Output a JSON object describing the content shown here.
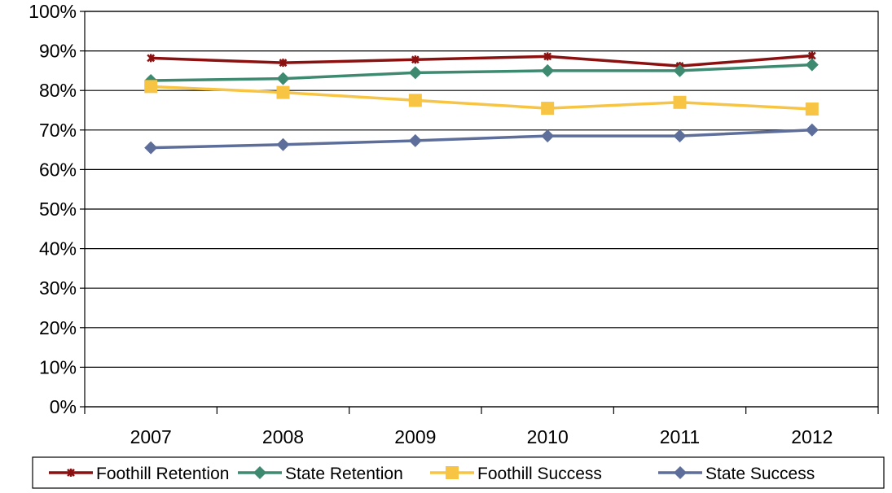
{
  "chart_data": {
    "type": "line",
    "categories": [
      "2007",
      "2008",
      "2009",
      "2010",
      "2011",
      "2012"
    ],
    "y_tick_labels": [
      "0%",
      "10%",
      "20%",
      "30%",
      "40%",
      "50%",
      "60%",
      "70%",
      "80%",
      "90%",
      "100%"
    ],
    "ylim": [
      0,
      100
    ],
    "grid": true,
    "legend_position": "bottom",
    "series": [
      {
        "name": "Foothill Retention",
        "color": "#8B1010",
        "marker": "star",
        "values": [
          88.2,
          87.0,
          87.8,
          88.6,
          86.2,
          88.8
        ]
      },
      {
        "name": "State Retention",
        "color": "#3E8A70",
        "marker": "diamond",
        "values": [
          82.5,
          83.0,
          84.5,
          85.0,
          85.0,
          86.5
        ]
      },
      {
        "name": "Foothill Success",
        "color": "#F7C443",
        "marker": "square",
        "values": [
          81.0,
          79.5,
          77.5,
          75.5,
          77.0,
          75.3
        ]
      },
      {
        "name": "State Success",
        "color": "#5E6E9B",
        "marker": "diamond",
        "values": [
          65.5,
          66.3,
          67.3,
          68.5,
          68.5,
          70.0
        ]
      }
    ]
  }
}
